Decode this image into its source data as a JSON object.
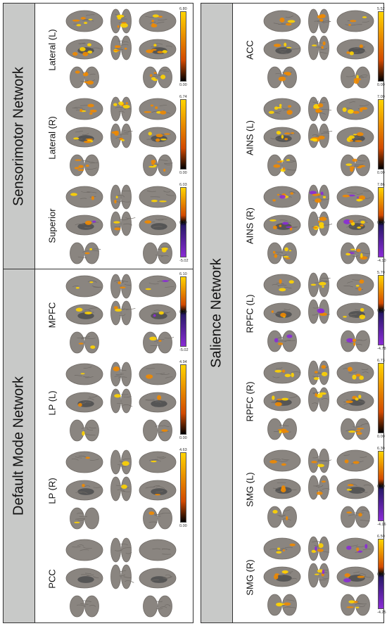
{
  "networks": [
    {
      "label": "Sensorimotor Network",
      "rois": [
        {
          "label": "Lateral (L)",
          "colorbar": {
            "max": "6.80",
            "mid": "",
            "min": "0.00",
            "diverging": false
          },
          "blob_density": 0.75
        },
        {
          "label": "Lateral (R)",
          "colorbar": {
            "max": "6.74",
            "mid": "",
            "min": "0.00",
            "diverging": false
          },
          "blob_density": 0.7
        },
        {
          "label": "Superior",
          "colorbar": {
            "max": "6.03",
            "mid": "0.00",
            "min": "-5.02",
            "diverging": true
          },
          "blob_density": 0.3
        }
      ]
    },
    {
      "label": "Default Mode Network",
      "rois": [
        {
          "label": "MPFC",
          "colorbar": {
            "max": "6.10",
            "mid": "0.00",
            "min": "-5.02",
            "diverging": true
          },
          "blob_density": 0.35
        },
        {
          "label": "LP (L)",
          "colorbar": {
            "max": "4.94",
            "mid": "",
            "min": "0.00",
            "diverging": false
          },
          "blob_density": 0.15
        },
        {
          "label": "LP (R)",
          "colorbar": {
            "max": "4.63",
            "mid": "",
            "min": "0.00",
            "diverging": false
          },
          "blob_density": 0.12
        },
        {
          "label": "PCC",
          "colorbar": null,
          "blob_density": 0
        }
      ]
    },
    {
      "label": "Salience Network",
      "rois": [
        {
          "label": "ACC",
          "colorbar": {
            "max": "5.52",
            "mid": "",
            "min": "0.00",
            "diverging": false
          },
          "blob_density": 0.45
        },
        {
          "label": "AINS (L)",
          "colorbar": {
            "max": "7.00",
            "mid": "",
            "min": "0.00",
            "diverging": false
          },
          "blob_density": 0.8
        },
        {
          "label": "AINS (R)",
          "colorbar": {
            "max": "7.86",
            "mid": "0.00",
            "min": "-4.10",
            "diverging": true
          },
          "blob_density": 0.85
        },
        {
          "label": "RPFC (L)",
          "colorbar": {
            "max": "5.70",
            "mid": "0.00",
            "min": "-4.78",
            "diverging": true
          },
          "blob_density": 0.45
        },
        {
          "label": "RPFC (R)",
          "colorbar": {
            "max": "6.73",
            "mid": "",
            "min": "0.00",
            "diverging": false
          },
          "blob_density": 0.5
        },
        {
          "label": "SMG (L)",
          "colorbar": {
            "max": "6.30",
            "mid": "0.00",
            "min": "-4.16",
            "diverging": true
          },
          "blob_density": 0.35
        },
        {
          "label": "SMG (R)",
          "colorbar": {
            "max": "6.50",
            "mid": "0.00",
            "min": "-4.25",
            "diverging": true
          },
          "blob_density": 0.55
        }
      ]
    }
  ],
  "colors": {
    "brain_fill": "#8a8580",
    "brain_shade": "#6f6a65",
    "positive_low": "#d24a00",
    "positive_high": "#ffd400",
    "negative": "#8a2bd6",
    "network_bar": "#c8c9c8"
  }
}
